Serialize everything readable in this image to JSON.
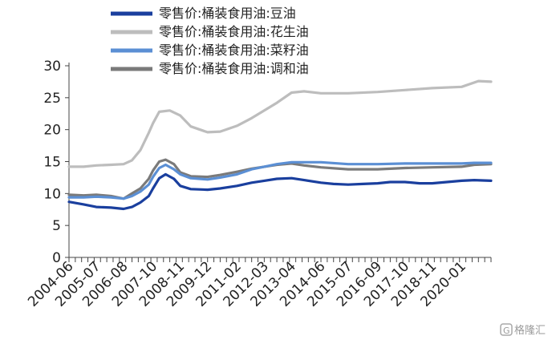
{
  "chart_data": {
    "type": "line",
    "title": "",
    "xlabel": "",
    "ylabel": "",
    "ylim": [
      0,
      30
    ],
    "yticks": [
      0,
      5,
      10,
      15,
      20,
      25,
      30
    ],
    "xlim": [
      "2004-06",
      "2021-03"
    ],
    "xtick_labels": [
      "2004-06",
      "2005-07",
      "2006-08",
      "2007-10",
      "2008-11",
      "2009-12",
      "2011-02",
      "2012-03",
      "2013-04",
      "2014-06",
      "2015-07",
      "2016-09",
      "2017-10",
      "2018-11",
      "2020-01"
    ],
    "grid": false,
    "legend_position": "top",
    "series": [
      {
        "name": "零售价:桶装食用油:豆油",
        "color": "#1a3f9e",
        "points": [
          [
            "2004-06",
            8.7
          ],
          [
            "2005-01",
            8.3
          ],
          [
            "2005-07",
            7.9
          ],
          [
            "2006-02",
            7.8
          ],
          [
            "2006-08",
            7.6
          ],
          [
            "2006-12",
            7.9
          ],
          [
            "2007-04",
            8.6
          ],
          [
            "2007-08",
            9.6
          ],
          [
            "2007-10",
            10.8
          ],
          [
            "2008-01",
            12.4
          ],
          [
            "2008-04",
            13.0
          ],
          [
            "2008-08",
            12.3
          ],
          [
            "2008-11",
            11.2
          ],
          [
            "2009-04",
            10.7
          ],
          [
            "2009-12",
            10.6
          ],
          [
            "2010-06",
            10.8
          ],
          [
            "2011-02",
            11.2
          ],
          [
            "2011-09",
            11.7
          ],
          [
            "2012-03",
            12.0
          ],
          [
            "2012-09",
            12.3
          ],
          [
            "2013-04",
            12.4
          ],
          [
            "2013-10",
            12.1
          ],
          [
            "2014-06",
            11.7
          ],
          [
            "2014-12",
            11.5
          ],
          [
            "2015-07",
            11.4
          ],
          [
            "2016-02",
            11.5
          ],
          [
            "2016-09",
            11.6
          ],
          [
            "2017-03",
            11.8
          ],
          [
            "2017-10",
            11.8
          ],
          [
            "2018-05",
            11.6
          ],
          [
            "2018-11",
            11.6
          ],
          [
            "2019-06",
            11.8
          ],
          [
            "2020-01",
            12.0
          ],
          [
            "2020-07",
            12.1
          ],
          [
            "2021-03",
            12.0
          ]
        ]
      },
      {
        "name": "零售价:桶装食用油:花生油",
        "color": "#bdbdbd",
        "points": [
          [
            "2004-06",
            14.2
          ],
          [
            "2005-01",
            14.2
          ],
          [
            "2005-07",
            14.4
          ],
          [
            "2006-02",
            14.5
          ],
          [
            "2006-08",
            14.6
          ],
          [
            "2006-12",
            15.2
          ],
          [
            "2007-04",
            16.8
          ],
          [
            "2007-08",
            19.5
          ],
          [
            "2007-10",
            21.0
          ],
          [
            "2008-01",
            22.8
          ],
          [
            "2008-06",
            23.0
          ],
          [
            "2008-11",
            22.2
          ],
          [
            "2009-04",
            20.5
          ],
          [
            "2009-12",
            19.6
          ],
          [
            "2010-06",
            19.7
          ],
          [
            "2011-02",
            20.6
          ],
          [
            "2011-09",
            21.8
          ],
          [
            "2012-03",
            23.0
          ],
          [
            "2012-09",
            24.2
          ],
          [
            "2013-04",
            25.8
          ],
          [
            "2013-10",
            26.0
          ],
          [
            "2014-06",
            25.7
          ],
          [
            "2015-07",
            25.7
          ],
          [
            "2016-09",
            25.9
          ],
          [
            "2017-10",
            26.2
          ],
          [
            "2018-11",
            26.5
          ],
          [
            "2020-01",
            26.7
          ],
          [
            "2020-09",
            27.6
          ],
          [
            "2021-03",
            27.5
          ]
        ]
      },
      {
        "name": "零售价:桶装食用油:菜籽油",
        "color": "#5b8fd4",
        "points": [
          [
            "2004-06",
            9.4
          ],
          [
            "2005-01",
            9.4
          ],
          [
            "2005-07",
            9.5
          ],
          [
            "2006-02",
            9.4
          ],
          [
            "2006-08",
            9.2
          ],
          [
            "2006-12",
            9.6
          ],
          [
            "2007-04",
            10.3
          ],
          [
            "2007-08",
            11.4
          ],
          [
            "2007-10",
            12.6
          ],
          [
            "2008-01",
            14.0
          ],
          [
            "2008-04",
            14.5
          ],
          [
            "2008-08",
            13.8
          ],
          [
            "2008-11",
            13.0
          ],
          [
            "2009-04",
            12.4
          ],
          [
            "2009-12",
            12.2
          ],
          [
            "2010-06",
            12.5
          ],
          [
            "2011-02",
            13.0
          ],
          [
            "2011-09",
            13.8
          ],
          [
            "2012-03",
            14.2
          ],
          [
            "2012-09",
            14.6
          ],
          [
            "2013-04",
            14.9
          ],
          [
            "2014-06",
            14.9
          ],
          [
            "2015-07",
            14.6
          ],
          [
            "2016-09",
            14.6
          ],
          [
            "2017-10",
            14.7
          ],
          [
            "2018-11",
            14.7
          ],
          [
            "2020-01",
            14.7
          ],
          [
            "2020-07",
            14.8
          ],
          [
            "2021-03",
            14.8
          ]
        ]
      },
      {
        "name": "零售价:桶装食用油:调和油",
        "color": "#7a7a7a",
        "points": [
          [
            "2004-06",
            9.8
          ],
          [
            "2005-01",
            9.7
          ],
          [
            "2005-07",
            9.8
          ],
          [
            "2006-02",
            9.6
          ],
          [
            "2006-08",
            9.2
          ],
          [
            "2006-12",
            10.0
          ],
          [
            "2007-04",
            10.8
          ],
          [
            "2007-08",
            12.3
          ],
          [
            "2007-10",
            13.6
          ],
          [
            "2008-01",
            15.0
          ],
          [
            "2008-04",
            15.3
          ],
          [
            "2008-08",
            14.6
          ],
          [
            "2008-11",
            13.3
          ],
          [
            "2009-04",
            12.7
          ],
          [
            "2009-12",
            12.6
          ],
          [
            "2010-06",
            12.9
          ],
          [
            "2011-02",
            13.4
          ],
          [
            "2011-09",
            13.9
          ],
          [
            "2012-03",
            14.2
          ],
          [
            "2012-09",
            14.5
          ],
          [
            "2013-04",
            14.7
          ],
          [
            "2013-10",
            14.4
          ],
          [
            "2014-06",
            14.1
          ],
          [
            "2015-07",
            13.8
          ],
          [
            "2016-09",
            13.8
          ],
          [
            "2017-10",
            14.0
          ],
          [
            "2018-11",
            14.1
          ],
          [
            "2020-01",
            14.2
          ],
          [
            "2020-07",
            14.5
          ],
          [
            "2021-03",
            14.6
          ]
        ]
      }
    ]
  },
  "watermark": {
    "text": "格隆汇",
    "icon": "g-logo-icon"
  }
}
